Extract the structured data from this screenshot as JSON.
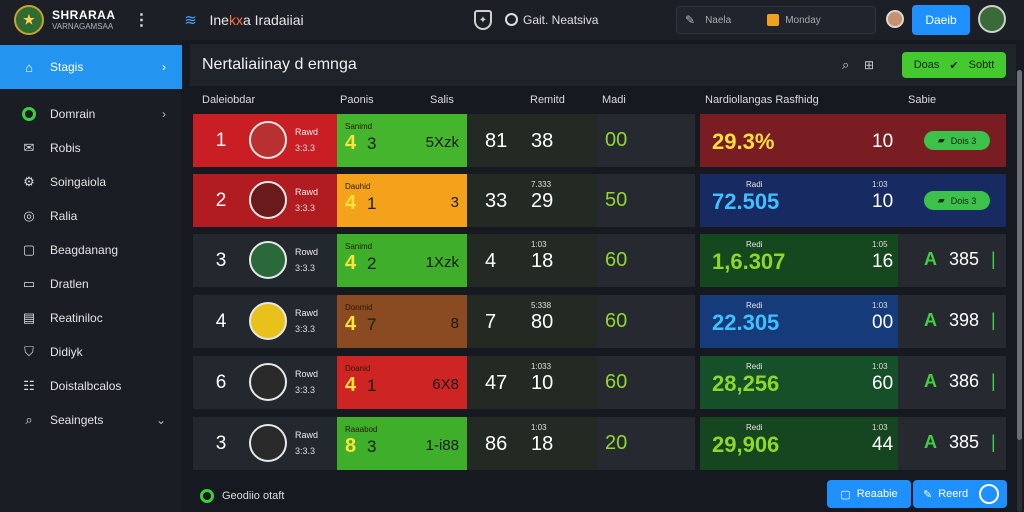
{
  "topbar": {
    "brand_line1": "SHRARAA",
    "brand_line2": "VARNAGAMSAA",
    "menu_icon": "dots-vertical-icon",
    "app_icon": "layers-icon",
    "app_title_pre": "Ine",
    "app_title_accent": "kx",
    "app_title_post": "a Iradaiiai",
    "match_label": "Gait. Neatsiva",
    "search_label": "Naela",
    "filter_label": "Monday",
    "top_button": "Daeib"
  },
  "sidebar": {
    "items": [
      {
        "label": "Stagis",
        "icon": "home-icon",
        "active": true,
        "chevron": true
      },
      {
        "label": "Domrain",
        "icon": "check-circle-icon",
        "active": false,
        "chevron": true
      },
      {
        "label": "Robis",
        "icon": "email-icon",
        "active": false,
        "chevron": false
      },
      {
        "label": "Soingaiola",
        "icon": "gear-icon",
        "active": false,
        "chevron": false
      },
      {
        "label": "Ralia",
        "icon": "target-icon",
        "active": false,
        "chevron": false
      },
      {
        "label": "Beagdanang",
        "icon": "square-icon",
        "active": false,
        "chevron": false
      },
      {
        "label": "Dratlen",
        "icon": "minus-icon",
        "active": false,
        "chevron": false
      },
      {
        "label": "Reatiniloc",
        "icon": "folder-icon",
        "active": false,
        "chevron": false
      },
      {
        "label": "Didiyk",
        "icon": "shield-icon",
        "active": false,
        "chevron": false
      },
      {
        "label": "Doistalbcalos",
        "icon": "list-icon",
        "active": false,
        "chevron": false
      },
      {
        "label": "Seaingets",
        "icon": "search-icon",
        "active": false,
        "chevron": true
      }
    ]
  },
  "main": {
    "title": "Nertaliaiinay d emnga",
    "action_button": "Doas",
    "action_button_secondary": "Sobtt",
    "columns": [
      "Daleiobdar",
      "Paonis",
      "Salis",
      "Remitd",
      "Madi",
      "Nardiollangas Rasfhidg",
      "Sabie"
    ]
  },
  "rows": [
    {
      "rank": "1",
      "name": "Rawd",
      "team": "3:3.3",
      "pts_label": "Sanimd",
      "pts_big": "4",
      "pts_small": "3",
      "pts_third": "5Xzk",
      "stat_label": "",
      "stat1": "81",
      "stat2": "38",
      "value": "00",
      "rate_label": "",
      "rate": "29.3%",
      "rate_num": "10",
      "rate_tick": "",
      "status_type": "pill",
      "status": "Dois 3"
    },
    {
      "rank": "2",
      "name": "Rawd",
      "team": "3:3.3",
      "pts_label": "Dauhid",
      "pts_big": "4",
      "pts_small": "1",
      "pts_third": "3",
      "stat_label": "7.333",
      "stat1": "33",
      "stat2": "29",
      "value": "50",
      "rate_label": "Radi",
      "rate": "72.505",
      "rate_num": "10",
      "rate_tick": "1:03",
      "status_type": "pill",
      "status": "Dois 3"
    },
    {
      "rank": "3",
      "name": "Rowd",
      "team": "3:3.3",
      "pts_label": "Sanimd",
      "pts_big": "4",
      "pts_small": "2",
      "pts_third": "1Xzk",
      "stat_label": "1:03",
      "stat1": "4",
      "stat2": "18",
      "value": "60",
      "rate_label": "Redi",
      "rate": "1,6.307",
      "rate_num": "16",
      "rate_tick": "1:05",
      "status_type": "score",
      "status": "385"
    },
    {
      "rank": "4",
      "name": "Rawd",
      "team": "3:3.3",
      "pts_label": "Donmid",
      "pts_big": "4",
      "pts_small": "7",
      "pts_third": "8",
      "stat_label": "5:338",
      "stat1": "7",
      "stat2": "80",
      "value": "60",
      "rate_label": "Redi",
      "rate": "22.305",
      "rate_num": "00",
      "rate_tick": "1:03",
      "status_type": "score",
      "status": "398"
    },
    {
      "rank": "6",
      "name": "Rowd",
      "team": "3:3.3",
      "pts_label": "Doanid",
      "pts_big": "4",
      "pts_small": "1",
      "pts_third": "6X8",
      "stat_label": "1:033",
      "stat1": "47",
      "stat2": "10",
      "value": "60",
      "rate_label": "Redi",
      "rate": "28,256",
      "rate_num": "60",
      "rate_tick": "1:03",
      "status_type": "score",
      "status": "386"
    },
    {
      "rank": "3",
      "name": "Rawd",
      "team": "3:3.3",
      "pts_label": "Raaabod",
      "pts_big": "8",
      "pts_small": "3",
      "pts_third": "1-i88",
      "stat_label": "1:03",
      "stat1": "86",
      "stat2": "18",
      "value": "20",
      "rate_label": "Redi",
      "rate": "29,906",
      "rate_num": "44",
      "rate_tick": "1:03",
      "status_type": "score",
      "status": "385"
    }
  ],
  "footer": {
    "status_text": "Geodiio otaft",
    "button1": "Reaabie",
    "button2": "Reerd"
  },
  "colors": {
    "accent": "#2394f0",
    "green": "#44c92e",
    "points_fills": [
      "#45b52e",
      "#f4a21c",
      "#3fae2b",
      "#8a4a22",
      "#cf2424",
      "#3fae2b"
    ],
    "row_fills": [
      "#c81e24",
      "#b01c20",
      "#23272e",
      "#23272e",
      "#23272e",
      "#23272e"
    ],
    "rate_fills": [
      "#7a1d22",
      "#172a62",
      "#16481f",
      "#163b7a",
      "#165028",
      "#16461f"
    ],
    "rate_text": [
      "#ffe03a",
      "#3fc0ff",
      "#8ed82c",
      "#3fc0ff",
      "#8ed82c",
      "#8ed82c"
    ],
    "avatar_fills": [
      "#b83030",
      "#6a1a1a",
      "#2a6a3a",
      "#e8c21a",
      "#2a2a2a",
      "#2a2a2a"
    ]
  }
}
